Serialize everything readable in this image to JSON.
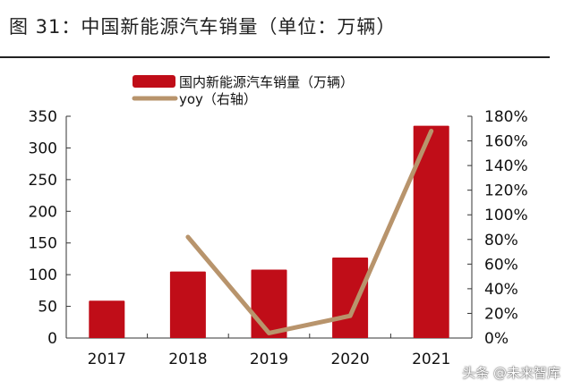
{
  "title": "图 31：中国新能源汽车销量（单位：万辆）",
  "watermark": "头条 @未来智库",
  "chart_data": {
    "type": "bar+line",
    "categories": [
      "2017",
      "2018",
      "2019",
      "2020",
      "2021"
    ],
    "series": [
      {
        "name": "国内新能源汽车销量（万辆）",
        "type": "bar",
        "axis": "left",
        "color": "#c00d18",
        "values": [
          59,
          105,
          108,
          127,
          335
        ]
      },
      {
        "name": "yoy（右轴）",
        "type": "line",
        "axis": "right",
        "color": "#b8946c",
        "values": [
          null,
          82,
          4,
          18,
          168
        ]
      }
    ],
    "ylim_left": [
      0,
      350
    ],
    "yticks_left": [
      "0",
      "50",
      "100",
      "150",
      "200",
      "250",
      "300",
      "350"
    ],
    "ylim_right": [
      0,
      180
    ],
    "yticks_right": [
      "0%",
      "20%",
      "40%",
      "60%",
      "80%",
      "100%",
      "120%",
      "140%",
      "160%",
      "180%"
    ],
    "legend": "top-center",
    "grid": false
  }
}
